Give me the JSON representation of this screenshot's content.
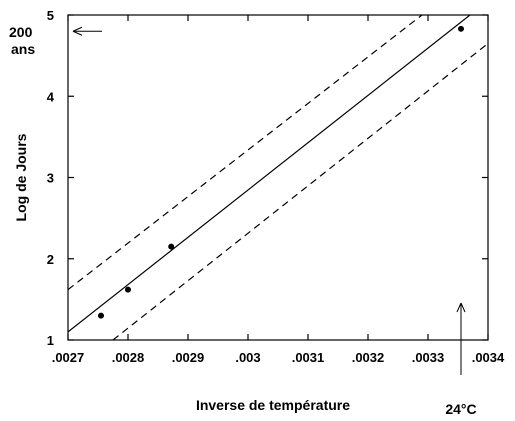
{
  "chart_data": {
    "type": "scatter",
    "xlabel": "Inverse de température",
    "ylabel": "Log de Jours",
    "xlim": [
      0.0027,
      0.0034
    ],
    "ylim": [
      1,
      5
    ],
    "x_ticks": [
      0.0027,
      0.0028,
      0.0029,
      0.003,
      0.0031,
      0.0032,
      0.0033,
      0.0034
    ],
    "x_tick_labels": [
      ".0027",
      ".0028",
      ".0029",
      ".003",
      ".0031",
      ".0032",
      ".0033",
      ".0034"
    ],
    "y_ticks": [
      1,
      2,
      3,
      4,
      5
    ],
    "y_tick_labels": [
      "1",
      "2",
      "3",
      "4",
      "5"
    ],
    "points": [
      {
        "x": 0.002755,
        "y": 1.3
      },
      {
        "x": 0.0028,
        "y": 1.62
      },
      {
        "x": 0.002872,
        "y": 2.15
      },
      {
        "x": 0.003355,
        "y": 4.83
      }
    ],
    "fit_line": {
      "x": [
        0.0027,
        0.00337
      ],
      "y": [
        1.1,
        5.0
      ]
    },
    "confidence_upper": {
      "x": [
        0.0027,
        0.00329
      ],
      "y": [
        1.62,
        5.0
      ]
    },
    "confidence_lower": {
      "x": [
        0.002775,
        0.0034
      ],
      "y": [
        1.0,
        4.65
      ]
    },
    "annotations": {
      "left_top": "200",
      "left_bottom": "ans",
      "left_arrow_y": 4.8,
      "bottom_label": "24°C",
      "bottom_arrow_x": 0.003355
    }
  }
}
